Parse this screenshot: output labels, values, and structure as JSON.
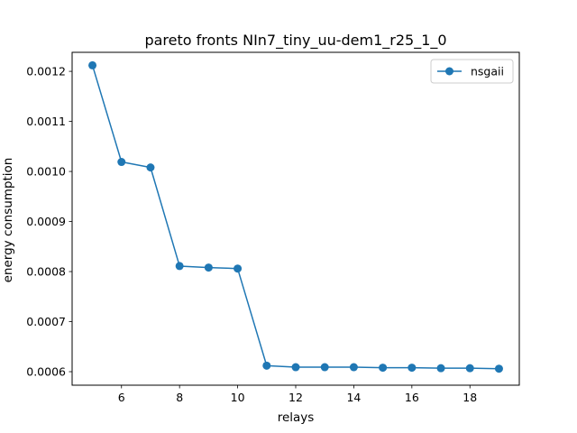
{
  "chart_data": {
    "type": "line",
    "title": "pareto fronts NIn7_tiny_uu-dem1_r25_1_0",
    "xlabel": "relays",
    "ylabel": "energy consumption",
    "xlim": [
      4.3,
      19.7
    ],
    "ylim": [
      0.000573,
      0.001238
    ],
    "xticks": [
      6,
      8,
      10,
      12,
      14,
      16,
      18
    ],
    "yticks": [
      0.0006,
      0.0007,
      0.0008,
      0.0009,
      0.001,
      0.0011,
      0.0012
    ],
    "ytick_labels": [
      "0.0006",
      "0.0007",
      "0.0008",
      "0.0009",
      "0.0010",
      "0.0011",
      "0.0012"
    ],
    "legend_position": "top-right",
    "grid": false,
    "series": [
      {
        "name": "nsgaii",
        "color": "#1f77b4",
        "marker": "circle",
        "x": [
          5,
          6,
          7,
          8,
          9,
          10,
          11,
          12,
          13,
          14,
          15,
          16,
          17,
          18,
          19
        ],
        "y": [
          0.001212,
          0.001019,
          0.001008,
          0.000811,
          0.000808,
          0.000806,
          0.000612,
          0.000609,
          0.000609,
          0.000609,
          0.000608,
          0.000608,
          0.000607,
          0.000607,
          0.000606
        ]
      }
    ]
  }
}
